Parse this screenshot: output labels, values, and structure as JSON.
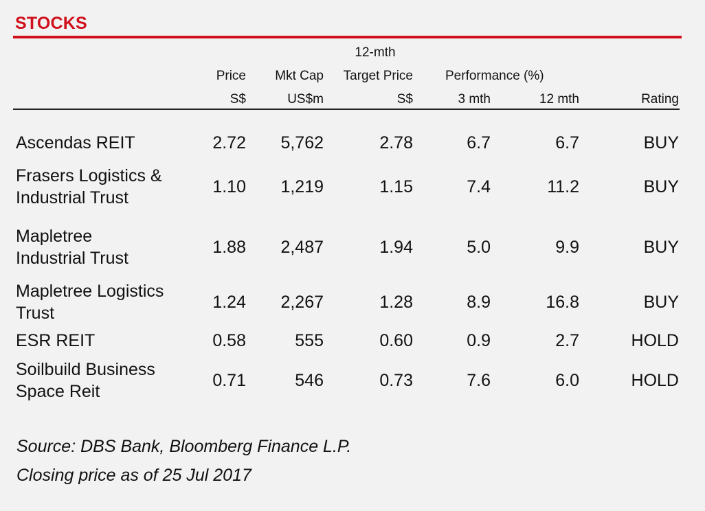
{
  "title": "STOCKS",
  "headers": {
    "price": [
      "Price",
      "S$"
    ],
    "mkt_cap": [
      "Mkt Cap",
      "US$m"
    ],
    "target": [
      "12-mth",
      "Target Price",
      "S$"
    ],
    "performance": "Performance (%)",
    "perf_3m": "3 mth",
    "perf_12m": "12 mth",
    "rating": "Rating"
  },
  "rows": [
    {
      "name": [
        "Ascendas REIT"
      ],
      "price": "2.72",
      "mkt_cap": "5,762",
      "target": "2.78",
      "perf_3m": "6.7",
      "perf_12m": "6.7",
      "rating": "BUY"
    },
    {
      "name": [
        "Frasers Logistics &",
        "Industrial Trust"
      ],
      "price": "1.10",
      "mkt_cap": "1,219",
      "target": "1.15",
      "perf_3m": "7.4",
      "perf_12m": "11.2",
      "rating": "BUY"
    },
    {
      "name": [
        "Mapletree",
        "Industrial Trust"
      ],
      "price": "1.88",
      "mkt_cap": "2,487",
      "target": "1.94",
      "perf_3m": "5.0",
      "perf_12m": "9.9",
      "rating": "BUY"
    },
    {
      "name": [
        "Mapletree Logistics",
        "Trust"
      ],
      "price": "1.24",
      "mkt_cap": "2,267",
      "target": "1.28",
      "perf_3m": "8.9",
      "perf_12m": "16.8",
      "rating": "BUY"
    },
    {
      "name": [
        "ESR REIT"
      ],
      "price": "0.58",
      "mkt_cap": "555",
      "target": "0.60",
      "perf_3m": "0.9",
      "perf_12m": "2.7",
      "rating": "HOLD"
    },
    {
      "name": [
        "Soilbuild Business",
        "Space Reit"
      ],
      "price": "0.71",
      "mkt_cap": "546",
      "target": "0.73",
      "perf_3m": "7.6",
      "perf_12m": "6.0",
      "rating": "HOLD"
    }
  ],
  "notes": {
    "source": "Source: DBS Bank, Bloomberg Finance L.P.",
    "closing": "Closing price as of  25 Jul 2017"
  }
}
